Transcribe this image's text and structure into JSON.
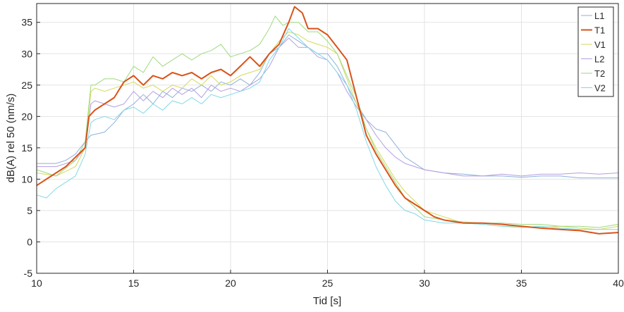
{
  "chart_data": {
    "type": "line",
    "title": "",
    "xlabel": "Tid [s]",
    "ylabel": "dB(A) rel 50 (nm/s)",
    "xlim": [
      10,
      40
    ],
    "ylim": [
      -5,
      38
    ],
    "xticks": [
      10,
      15,
      20,
      25,
      30,
      35,
      40
    ],
    "yticks": [
      -5,
      0,
      5,
      10,
      15,
      20,
      25,
      30,
      35
    ],
    "grid": true,
    "legend_position": "top-right",
    "series": [
      {
        "name": "L1",
        "color": "#8fb0dc",
        "width": 1,
        "points": [
          [
            10,
            12.5
          ],
          [
            11,
            12.5
          ],
          [
            11.5,
            13
          ],
          [
            12,
            14
          ],
          [
            12.5,
            16
          ],
          [
            12.8,
            17
          ],
          [
            13.5,
            17.5
          ],
          [
            14,
            19
          ],
          [
            14.5,
            21
          ],
          [
            15,
            22
          ],
          [
            15.5,
            23.5
          ],
          [
            16,
            22
          ],
          [
            16.5,
            24
          ],
          [
            17,
            23
          ],
          [
            17.5,
            24.5
          ],
          [
            18,
            24
          ],
          [
            18.5,
            25
          ],
          [
            19,
            24
          ],
          [
            19.5,
            25.5
          ],
          [
            20,
            25
          ],
          [
            20.5,
            26
          ],
          [
            21,
            25
          ],
          [
            21.5,
            27
          ],
          [
            22,
            30
          ],
          [
            22.5,
            31
          ],
          [
            23,
            33
          ],
          [
            23.5,
            32
          ],
          [
            24,
            31
          ],
          [
            24.5,
            30
          ],
          [
            25,
            30
          ],
          [
            25.5,
            28
          ],
          [
            26,
            25
          ],
          [
            26.5,
            22
          ],
          [
            27,
            19.5
          ],
          [
            27.5,
            18
          ],
          [
            28,
            17.5
          ],
          [
            28.5,
            15.5
          ],
          [
            29,
            13.5
          ],
          [
            29.5,
            12.5
          ],
          [
            30,
            11.5
          ],
          [
            31,
            11
          ],
          [
            32,
            10.8
          ],
          [
            33,
            10.5
          ],
          [
            34,
            10.5
          ],
          [
            35,
            10.3
          ],
          [
            36,
            10.5
          ],
          [
            37,
            10.5
          ],
          [
            38,
            10.2
          ],
          [
            39,
            10.2
          ],
          [
            40,
            10.2
          ]
        ]
      },
      {
        "name": "T1",
        "color": "#d95319",
        "width": 2,
        "points": [
          [
            10,
            9
          ],
          [
            10.5,
            10
          ],
          [
            11,
            11
          ],
          [
            11.5,
            12
          ],
          [
            12,
            13.5
          ],
          [
            12.5,
            15
          ],
          [
            12.7,
            20
          ],
          [
            13,
            21
          ],
          [
            13.5,
            22
          ],
          [
            14,
            23
          ],
          [
            14.5,
            25.5
          ],
          [
            15,
            26.5
          ],
          [
            15.5,
            25
          ],
          [
            16,
            26.5
          ],
          [
            16.5,
            26
          ],
          [
            17,
            27
          ],
          [
            17.5,
            26.5
          ],
          [
            18,
            27
          ],
          [
            18.5,
            26
          ],
          [
            19,
            27
          ],
          [
            19.5,
            27.5
          ],
          [
            20,
            26.5
          ],
          [
            20.5,
            28
          ],
          [
            21,
            29.5
          ],
          [
            21.5,
            28
          ],
          [
            22,
            30
          ],
          [
            22.5,
            31.5
          ],
          [
            23,
            35
          ],
          [
            23.3,
            37.5
          ],
          [
            23.7,
            36.5
          ],
          [
            24,
            34
          ],
          [
            24.5,
            34
          ],
          [
            25,
            33
          ],
          [
            25.5,
            31
          ],
          [
            26,
            29
          ],
          [
            26.5,
            23
          ],
          [
            27,
            17
          ],
          [
            27.5,
            14
          ],
          [
            28,
            11.5
          ],
          [
            28.5,
            9
          ],
          [
            29,
            7
          ],
          [
            29.5,
            6
          ],
          [
            30,
            5
          ],
          [
            30.5,
            4
          ],
          [
            31,
            3.5
          ],
          [
            32,
            3
          ],
          [
            33,
            3
          ],
          [
            34,
            2.8
          ],
          [
            35,
            2.5
          ],
          [
            36,
            2.2
          ],
          [
            37,
            2
          ],
          [
            38,
            1.8
          ],
          [
            39,
            1.3
          ],
          [
            40,
            1.5
          ]
        ]
      },
      {
        "name": "V1",
        "color": "#d4d95c",
        "width": 1,
        "points": [
          [
            10,
            11
          ],
          [
            11,
            10.5
          ],
          [
            12,
            12
          ],
          [
            12.5,
            15
          ],
          [
            12.8,
            24
          ],
          [
            13,
            24.5
          ],
          [
            13.5,
            24
          ],
          [
            14,
            24.5
          ],
          [
            14.5,
            25
          ],
          [
            15,
            25.5
          ],
          [
            15.5,
            24.5
          ],
          [
            16,
            25
          ],
          [
            16.5,
            24
          ],
          [
            17,
            25
          ],
          [
            17.5,
            24.5
          ],
          [
            18,
            26
          ],
          [
            18.5,
            25
          ],
          [
            19,
            26.5
          ],
          [
            19.5,
            25
          ],
          [
            20,
            25.5
          ],
          [
            20.5,
            26.5
          ],
          [
            21,
            27
          ],
          [
            21.5,
            27.5
          ],
          [
            22,
            30
          ],
          [
            22.5,
            32
          ],
          [
            23,
            33.5
          ],
          [
            23.5,
            33
          ],
          [
            24,
            32
          ],
          [
            24.5,
            31.5
          ],
          [
            25,
            31
          ],
          [
            25.5,
            30
          ],
          [
            26,
            26
          ],
          [
            26.5,
            22
          ],
          [
            27,
            18
          ],
          [
            27.5,
            15
          ],
          [
            28,
            12.5
          ],
          [
            28.5,
            10
          ],
          [
            29,
            8
          ],
          [
            29.5,
            6.5
          ],
          [
            30,
            5
          ],
          [
            31,
            4
          ],
          [
            32,
            3
          ],
          [
            33,
            2.8
          ],
          [
            34,
            2.5
          ],
          [
            35,
            2.5
          ],
          [
            36,
            2.3
          ],
          [
            37,
            2.5
          ],
          [
            38,
            2.2
          ],
          [
            39,
            2
          ],
          [
            40,
            2.5
          ]
        ]
      },
      {
        "name": "L2",
        "color": "#b49ee0",
        "width": 1,
        "points": [
          [
            10,
            12
          ],
          [
            11,
            12
          ],
          [
            12,
            13
          ],
          [
            12.5,
            15
          ],
          [
            12.8,
            22
          ],
          [
            13,
            22.5
          ],
          [
            13.5,
            22
          ],
          [
            14,
            21.5
          ],
          [
            14.5,
            22
          ],
          [
            15,
            24
          ],
          [
            15.5,
            22.5
          ],
          [
            16,
            24
          ],
          [
            16.5,
            23
          ],
          [
            17,
            24.5
          ],
          [
            17.5,
            23.5
          ],
          [
            18,
            24.5
          ],
          [
            18.5,
            23
          ],
          [
            19,
            25
          ],
          [
            19.5,
            24
          ],
          [
            20,
            24.5
          ],
          [
            20.5,
            24
          ],
          [
            21,
            25
          ],
          [
            21.5,
            26
          ],
          [
            22,
            28
          ],
          [
            22.5,
            31
          ],
          [
            23,
            32.5
          ],
          [
            23.5,
            31
          ],
          [
            24,
            31
          ],
          [
            24.5,
            29.5
          ],
          [
            25,
            29
          ],
          [
            25.5,
            27
          ],
          [
            26,
            24
          ],
          [
            26.5,
            21.5
          ],
          [
            27,
            19.5
          ],
          [
            27.5,
            17
          ],
          [
            28,
            15
          ],
          [
            28.5,
            13.5
          ],
          [
            29,
            12.5
          ],
          [
            29.5,
            12
          ],
          [
            30,
            11.5
          ],
          [
            31,
            11
          ],
          [
            32,
            10.5
          ],
          [
            33,
            10.5
          ],
          [
            34,
            10.8
          ],
          [
            35,
            10.5
          ],
          [
            36,
            10.8
          ],
          [
            37,
            10.8
          ],
          [
            38,
            11
          ],
          [
            39,
            10.8
          ],
          [
            40,
            11
          ]
        ]
      },
      {
        "name": "T2",
        "color": "#9ed97e",
        "width": 1,
        "points": [
          [
            10,
            11.5
          ],
          [
            11,
            10.5
          ],
          [
            12,
            13
          ],
          [
            12.5,
            16
          ],
          [
            12.8,
            25
          ],
          [
            13,
            25
          ],
          [
            13.5,
            26
          ],
          [
            14,
            26
          ],
          [
            14.5,
            25.5
          ],
          [
            15,
            28
          ],
          [
            15.5,
            27
          ],
          [
            16,
            29.5
          ],
          [
            16.5,
            28
          ],
          [
            17,
            29
          ],
          [
            17.5,
            30
          ],
          [
            18,
            29
          ],
          [
            18.5,
            30
          ],
          [
            19,
            30.5
          ],
          [
            19.5,
            31.5
          ],
          [
            20,
            29.5
          ],
          [
            20.5,
            30
          ],
          [
            21,
            30.5
          ],
          [
            21.5,
            31.5
          ],
          [
            22,
            34
          ],
          [
            22.3,
            36
          ],
          [
            22.7,
            34.5
          ],
          [
            23,
            35
          ],
          [
            23.5,
            35
          ],
          [
            24,
            33.5
          ],
          [
            24.5,
            33.5
          ],
          [
            25,
            32
          ],
          [
            25.5,
            30
          ],
          [
            26,
            26.5
          ],
          [
            26.5,
            23
          ],
          [
            27,
            18
          ],
          [
            27.5,
            14.5
          ],
          [
            28,
            12
          ],
          [
            28.5,
            9.5
          ],
          [
            29,
            7
          ],
          [
            29.5,
            5.5
          ],
          [
            30,
            4
          ],
          [
            31,
            3.5
          ],
          [
            32,
            3.2
          ],
          [
            33,
            3
          ],
          [
            34,
            3
          ],
          [
            35,
            2.8
          ],
          [
            36,
            2.8
          ],
          [
            37,
            2.5
          ],
          [
            38,
            2.5
          ],
          [
            39,
            2.3
          ],
          [
            40,
            2.8
          ]
        ]
      },
      {
        "name": "V2",
        "color": "#7fd9e8",
        "width": 1,
        "points": [
          [
            10,
            7.5
          ],
          [
            10.5,
            7
          ],
          [
            11,
            8.5
          ],
          [
            11.5,
            9.5
          ],
          [
            12,
            10.5
          ],
          [
            12.5,
            14
          ],
          [
            12.8,
            19
          ],
          [
            13,
            19.5
          ],
          [
            13.5,
            20
          ],
          [
            14,
            19.5
          ],
          [
            14.5,
            21
          ],
          [
            15,
            21.5
          ],
          [
            15.5,
            20.5
          ],
          [
            16,
            22
          ],
          [
            16.5,
            21
          ],
          [
            17,
            22.5
          ],
          [
            17.5,
            22
          ],
          [
            18,
            23
          ],
          [
            18.5,
            22
          ],
          [
            19,
            23.5
          ],
          [
            19.5,
            23
          ],
          [
            20,
            23.5
          ],
          [
            20.5,
            24
          ],
          [
            21,
            24.5
          ],
          [
            21.5,
            25.5
          ],
          [
            22,
            29
          ],
          [
            22.5,
            31
          ],
          [
            23,
            34
          ],
          [
            23.5,
            32.5
          ],
          [
            24,
            31
          ],
          [
            24.5,
            30
          ],
          [
            25,
            29
          ],
          [
            25.5,
            27
          ],
          [
            26,
            25
          ],
          [
            26.5,
            21
          ],
          [
            27,
            16
          ],
          [
            27.5,
            12
          ],
          [
            28,
            9
          ],
          [
            28.5,
            6.5
          ],
          [
            29,
            5
          ],
          [
            29.5,
            4.5
          ],
          [
            30,
            3.5
          ],
          [
            31,
            3
          ],
          [
            32,
            3
          ],
          [
            33,
            2.8
          ],
          [
            34,
            2.5
          ],
          [
            35,
            2.3
          ],
          [
            36,
            2.5
          ],
          [
            37,
            2.2
          ],
          [
            38,
            2
          ],
          [
            39,
            2
          ],
          [
            40,
            2
          ]
        ]
      }
    ]
  }
}
